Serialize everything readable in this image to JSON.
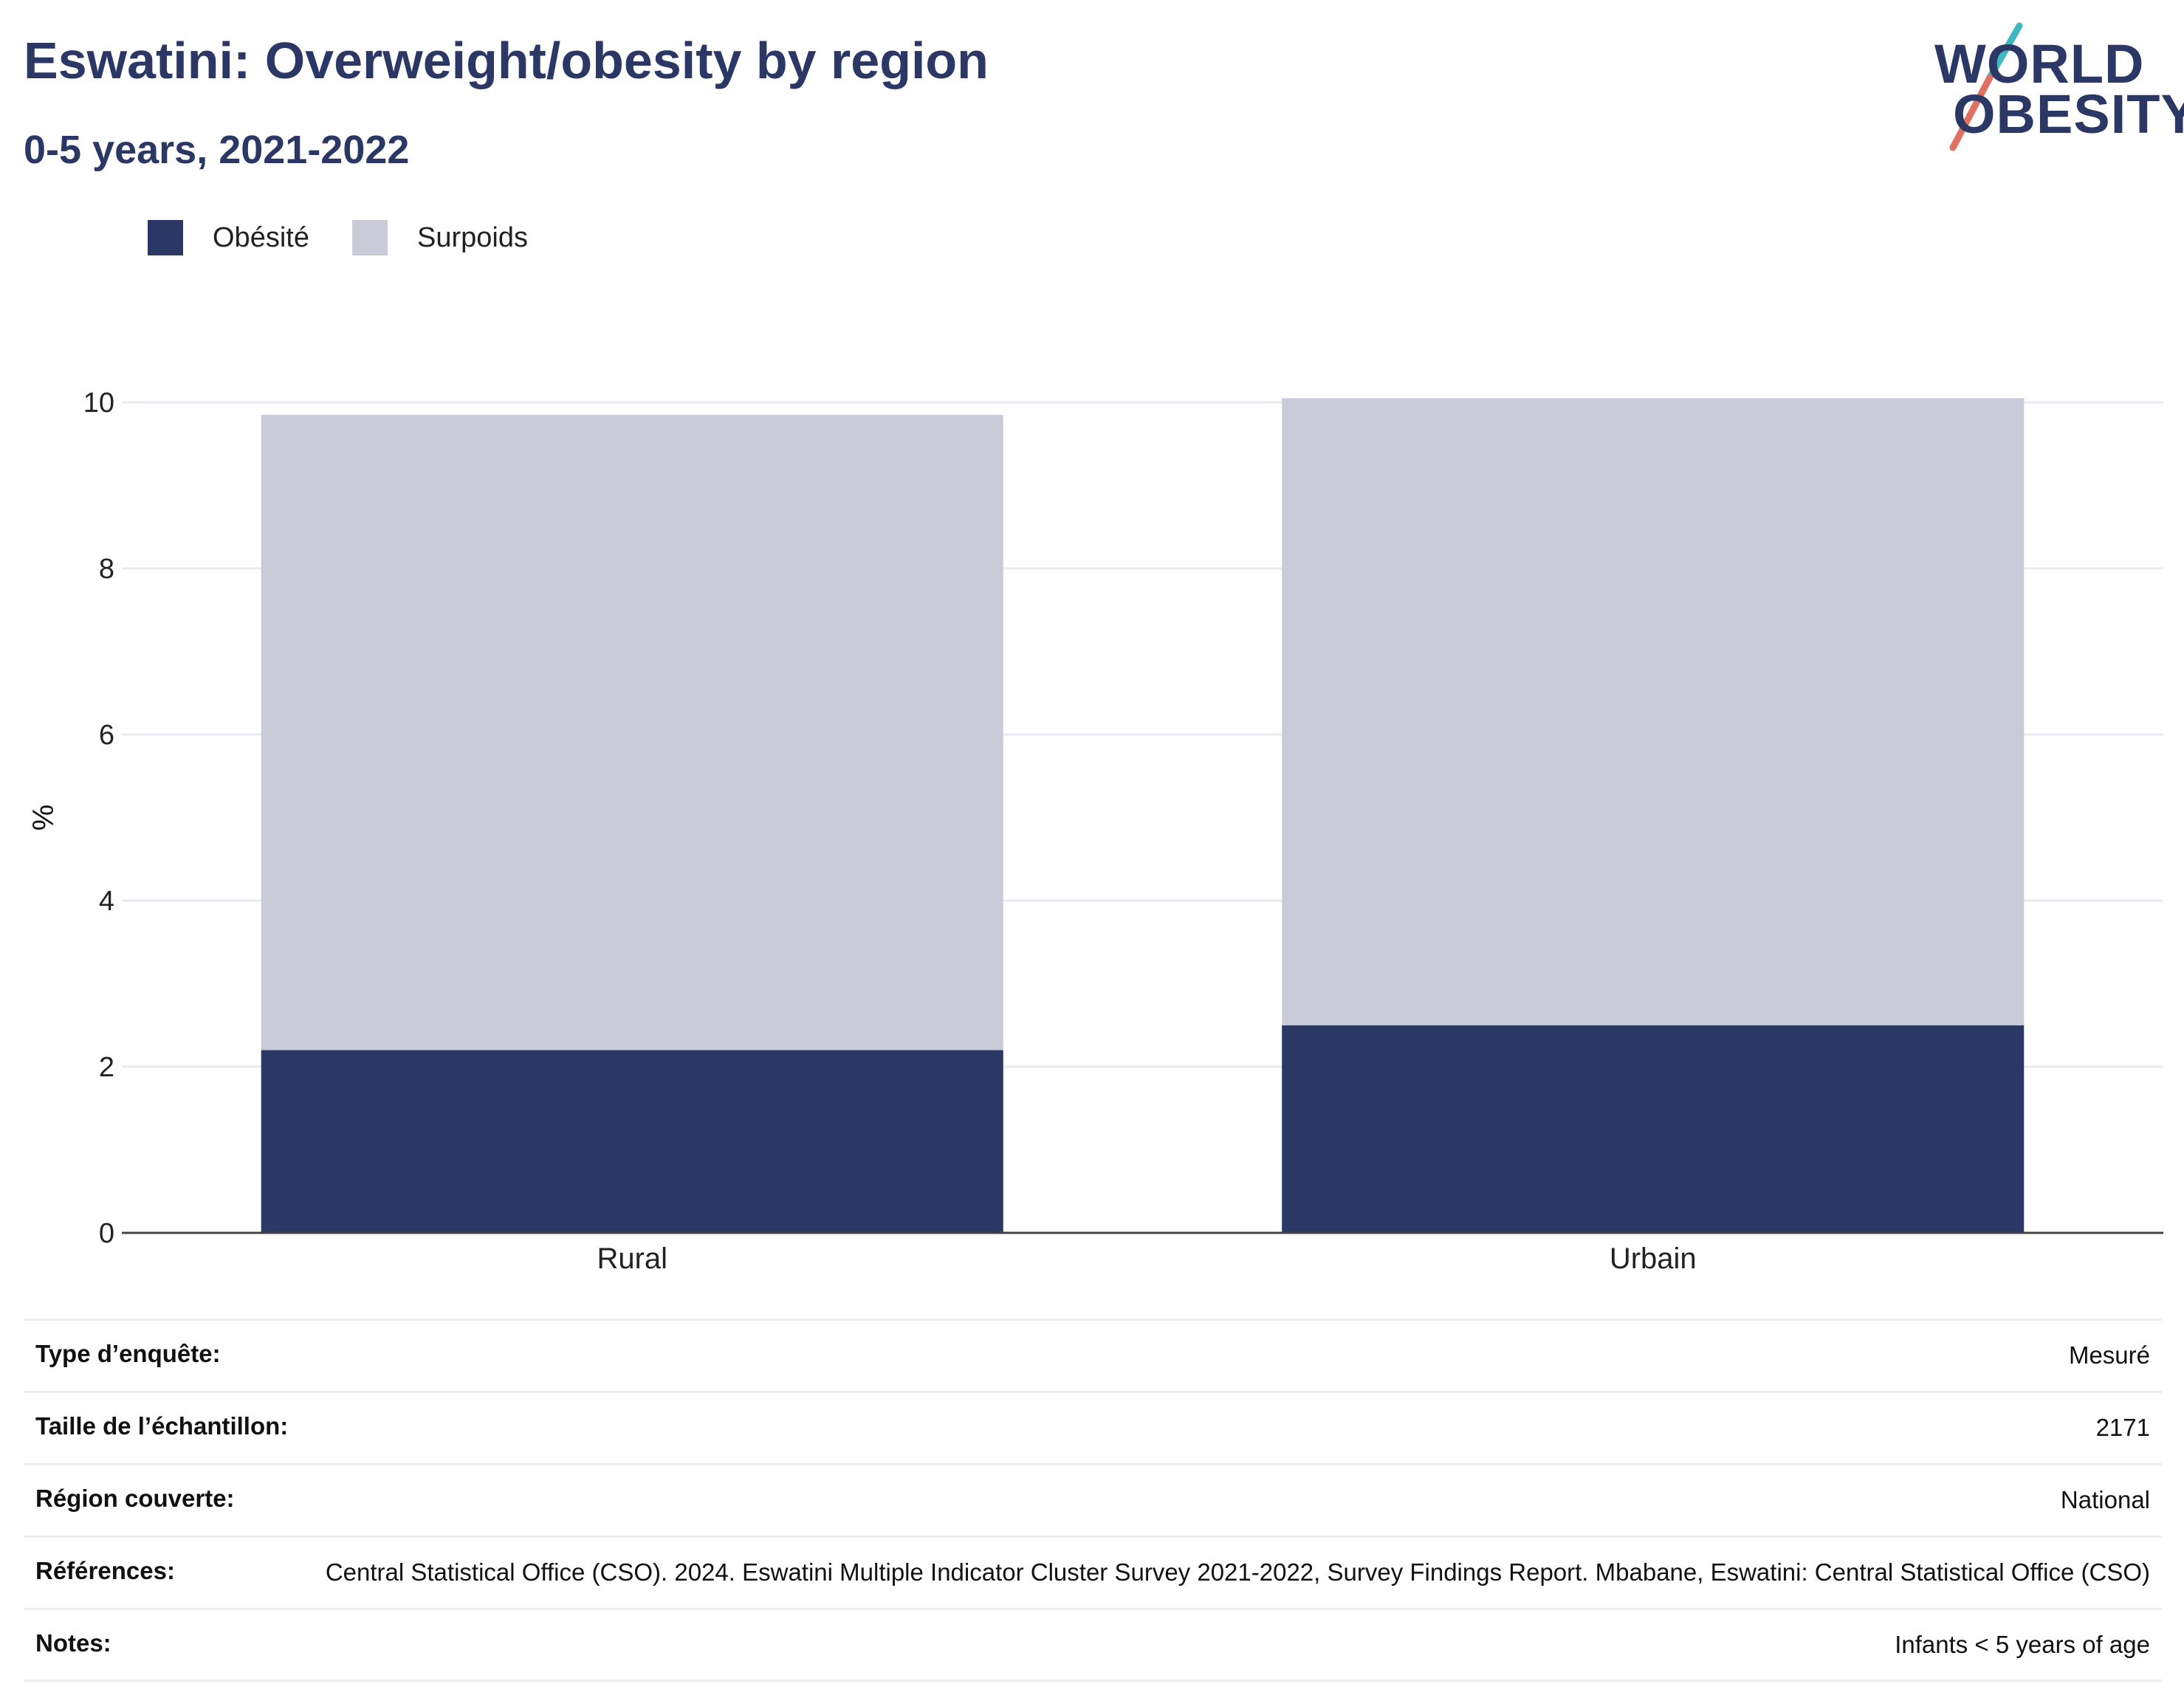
{
  "header": {
    "title": "Eswatini: Overweight/obesity by region",
    "subtitle": "0-5 years, 2021-2022"
  },
  "logo": {
    "line1": "WORLD",
    "line2": "OBESITY",
    "colors": [
      "#2b3765",
      "#3fb8c0",
      "#e0705f"
    ]
  },
  "legend": [
    {
      "label": "Obésité",
      "color": "#2b3765"
    },
    {
      "label": "Surpoids",
      "color": "#c9ccd8"
    }
  ],
  "chart_data": {
    "type": "bar",
    "stacked": true,
    "categories": [
      "Rural",
      "Urbain"
    ],
    "series": [
      {
        "name": "Obésité",
        "color": "#2b3765",
        "values": [
          2.2,
          2.5
        ]
      },
      {
        "name": "Surpoids",
        "color": "#c9ccd8",
        "values": [
          7.65,
          7.55
        ]
      }
    ],
    "ylabel": "%",
    "xlabel": "",
    "ylim": [
      0,
      10
    ],
    "yticks": [
      0,
      2,
      4,
      6,
      8,
      10
    ],
    "grid": true,
    "legend_position": "top-left"
  },
  "info": [
    {
      "label": "Type d’enquête:",
      "value": "Mesuré"
    },
    {
      "label": "Taille de l’échantillon:",
      "value": "2171"
    },
    {
      "label": "Région couverte:",
      "value": "National"
    },
    {
      "label": "Références:",
      "value": "Central Statistical Office (CSO). 2024. Eswatini Multiple Indicator Cluster Survey 2021-2022, Survey Findings Report. Mbabane, Eswatini: Central Statistical Office (CSO)"
    },
    {
      "label": "Notes:",
      "value": "Infants < 5 years of age"
    }
  ]
}
